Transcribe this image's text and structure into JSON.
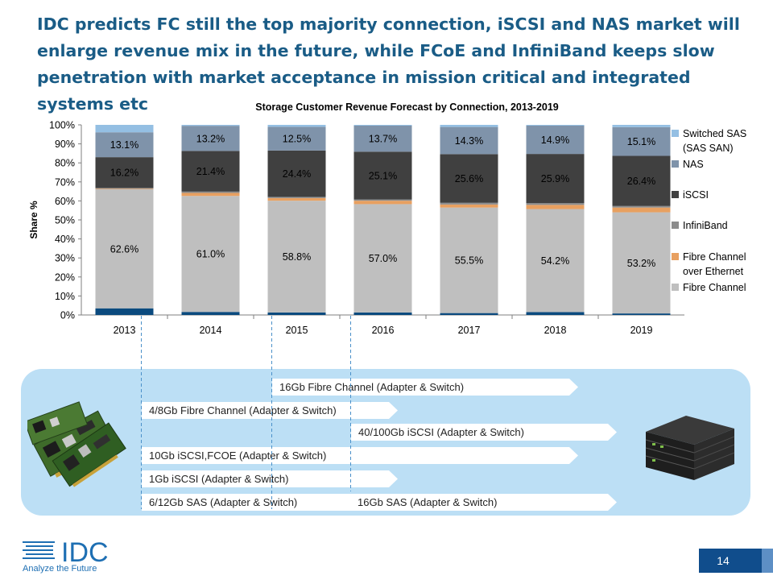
{
  "slide": {
    "title": "IDC predicts FC still the top majority connection, iSCSI and NAS market will enlarge revenue mix in the future, while FCoE and InfiniBand keeps slow penetration with market acceptance in mission critical and integrated systems etc",
    "page_number": "14"
  },
  "logo": {
    "text": "IDC",
    "tagline": "Analyze the Future"
  },
  "chart_data": {
    "type": "bar",
    "stacked": true,
    "percent": true,
    "title": "Storage Customer Revenue Forecast by Connection, 2013-2019",
    "ylabel": "Share %",
    "xlabel": "",
    "ylim": [
      0,
      100
    ],
    "yticks": [
      "0%",
      "10%",
      "20%",
      "30%",
      "40%",
      "50%",
      "60%",
      "70%",
      "80%",
      "90%",
      "100%"
    ],
    "categories": [
      "2013",
      "2014",
      "2015",
      "2016",
      "2017",
      "2018",
      "2019"
    ],
    "legend_position": "right",
    "series": [
      {
        "name": "",
        "color": "#0b4a7e",
        "values": [
          3.5,
          1.6,
          1.3,
          1.3,
          1.0,
          1.5,
          0.8
        ]
      },
      {
        "name": "Fibre Channel",
        "color": "#bfbfbf",
        "values": [
          62.6,
          61.0,
          58.8,
          57.0,
          55.5,
          54.2,
          53.2
        ]
      },
      {
        "name": "Fibre Channel over Ethernet",
        "color": "#e8a060",
        "values": [
          0.3,
          1.6,
          1.4,
          1.8,
          1.6,
          2.2,
          2.5
        ]
      },
      {
        "name": "InfiniBand",
        "color": "#8c8c8c",
        "values": [
          0.4,
          0.7,
          0.6,
          0.7,
          0.9,
          0.9,
          0.8
        ]
      },
      {
        "name": "iSCSI",
        "color": "#404040",
        "values": [
          16.2,
          21.4,
          24.4,
          25.1,
          25.6,
          25.9,
          26.4
        ]
      },
      {
        "name": "NAS",
        "color": "#7f93aa",
        "values": [
          13.1,
          13.2,
          12.5,
          13.7,
          14.3,
          14.9,
          15.1
        ]
      },
      {
        "name": "Switched SAS (SAS SAN)",
        "color": "#94bfe3",
        "values": [
          3.9,
          0.5,
          1.0,
          0.4,
          1.1,
          0.4,
          1.2
        ]
      }
    ],
    "data_labels": {
      "Fibre Channel": [
        "62.6%",
        "61.0%",
        "58.8%",
        "57.0%",
        "55.5%",
        "54.2%",
        "53.2%"
      ],
      "iSCSI": [
        "16.2%",
        "21.4%",
        "24.4%",
        "25.1%",
        "25.6%",
        "25.9%",
        "26.4%"
      ],
      "NAS": [
        "13.1%",
        "13.2%",
        "12.5%",
        "13.7%",
        "14.3%",
        "14.9%",
        "15.1%"
      ]
    },
    "legend": [
      {
        "label": "Switched SAS (SAS SAN)",
        "color": "#94bfe3"
      },
      {
        "label": "NAS",
        "color": "#7f93aa"
      },
      {
        "label": "iSCSI",
        "color": "#404040"
      },
      {
        "label": "InfiniBand",
        "color": "#8c8c8c"
      },
      {
        "label": "Fibre Channel over Ethernet",
        "color": "#e8a060"
      },
      {
        "label": "Fibre Channel",
        "color": "#bfbfbf"
      }
    ]
  },
  "roadmap": [
    {
      "label": "16Gb Fibre Channel (Adapter & Switch)"
    },
    {
      "label": "4/8Gb Fibre Channel (Adapter & Switch)"
    },
    {
      "label": "40/100Gb iSCSI (Adapter & Switch)"
    },
    {
      "label": "10Gb iSCSI,FCOE (Adapter & Switch)"
    },
    {
      "label": "1Gb iSCSI (Adapter & Switch)"
    },
    {
      "label": "6/12Gb SAS (Adapter & Switch)",
      "label2": "16Gb SAS (Adapter & Switch)"
    }
  ]
}
